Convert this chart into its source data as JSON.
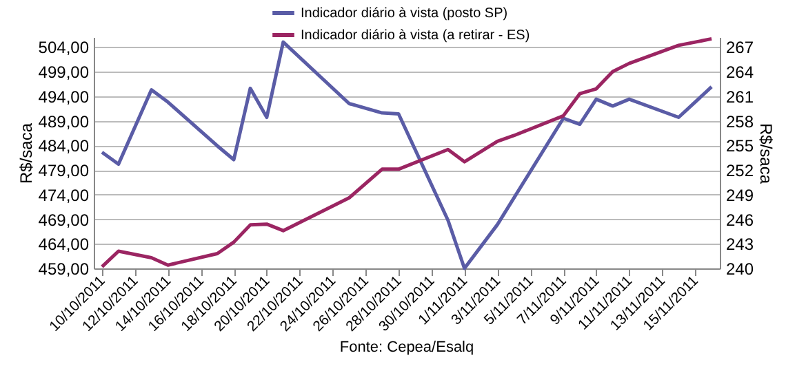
{
  "chart_data": {
    "type": "line",
    "ylabel": "R$/saca",
    "y2label": "R$/saca",
    "annotations": [
      "Fonte: Cepea/Esalq"
    ],
    "series": [
      {
        "name": "Indicador diário à vista (posto SP)",
        "color": "#5a5ca6",
        "x": [
          "2011-10-10",
          "2011-10-11",
          "2011-10-13",
          "2011-10-14",
          "2011-10-17",
          "2011-10-18",
          "2011-10-19",
          "2011-10-20",
          "2011-10-21",
          "2011-10-25",
          "2011-10-27",
          "2011-10-28",
          "2011-10-31",
          "2011-11-01",
          "2011-11-03",
          "2011-11-07",
          "2011-11-08",
          "2011-11-09",
          "2011-11-10",
          "2011-11-11",
          "2011-11-14",
          "2011-11-16"
        ],
        "values": [
          482.6,
          480.2,
          495.3,
          492.8,
          483.9,
          481.1,
          495.6,
          489.7,
          505.0,
          492.5,
          490.6,
          490.4,
          468.8,
          459.0,
          467.9,
          489.5,
          488.3,
          493.4,
          492.0,
          493.4,
          489.7,
          495.9
        ]
      },
      {
        "name": "Indicador diário à vista (a retirar - ES)",
        "color": "#9b2562",
        "axis": "y2",
        "x": [
          "2011-10-10",
          "2011-10-11",
          "2011-10-13",
          "2011-10-14",
          "2011-10-17",
          "2011-10-18",
          "2011-10-19",
          "2011-10-20",
          "2011-10-21",
          "2011-10-25",
          "2011-10-27",
          "2011-10-28",
          "2011-10-31",
          "2011-11-01",
          "2011-11-03",
          "2011-11-04",
          "2011-11-07",
          "2011-11-08",
          "2011-11-09",
          "2011-11-10",
          "2011-11-11",
          "2011-11-14",
          "2011-11-16"
        ],
        "values": [
          240.2,
          242.1,
          241.3,
          240.4,
          241.8,
          243.2,
          245.3,
          245.4,
          244.6,
          248.6,
          252.1,
          252.1,
          254.5,
          253.0,
          255.5,
          256.2,
          258.6,
          261.3,
          261.9,
          264.0,
          265.0,
          267.2,
          268.0
        ]
      }
    ],
    "xlim": [
      "2011-10-09T12:00",
      "2011-11-16T12:00"
    ],
    "xticks": [
      {
        "value": "2011-10-10",
        "label": "10/10/2011"
      },
      {
        "value": "2011-10-12",
        "label": "12/10/2011"
      },
      {
        "value": "2011-10-14",
        "label": "14/10/2011"
      },
      {
        "value": "2011-10-16",
        "label": "16/10/2011"
      },
      {
        "value": "2011-10-18",
        "label": "18/10/2011"
      },
      {
        "value": "2011-10-20",
        "label": "20/10/2011"
      },
      {
        "value": "2011-10-22",
        "label": "22/10/2011"
      },
      {
        "value": "2011-10-24",
        "label": "24/10/2011"
      },
      {
        "value": "2011-10-26",
        "label": "26/10/2011"
      },
      {
        "value": "2011-10-28",
        "label": "28/10/2011"
      },
      {
        "value": "2011-10-30",
        "label": "30/10/2011"
      },
      {
        "value": "2011-11-01",
        "label": "1/11/2011"
      },
      {
        "value": "2011-11-03",
        "label": "3/11/2011"
      },
      {
        "value": "2011-11-05",
        "label": "5/11/2011"
      },
      {
        "value": "2011-11-07",
        "label": "7/11/2011"
      },
      {
        "value": "2011-11-09",
        "label": "9/11/2011"
      },
      {
        "value": "2011-11-11",
        "label": "11/11/2011"
      },
      {
        "value": "2011-11-13",
        "label": "13/11/2011"
      },
      {
        "value": "2011-11-15",
        "label": "15/11/2011"
      }
    ],
    "ylim": [
      459,
      506
    ],
    "yticks": [
      {
        "value": 459,
        "label": "459,00"
      },
      {
        "value": 464,
        "label": "464,00"
      },
      {
        "value": 469,
        "label": "469,00"
      },
      {
        "value": 474,
        "label": "474,00"
      },
      {
        "value": 479,
        "label": "479,00"
      },
      {
        "value": 484,
        "label": "484,00"
      },
      {
        "value": 489,
        "label": "489,00"
      },
      {
        "value": 494,
        "label": "494,00"
      },
      {
        "value": 499,
        "label": "499,00"
      },
      {
        "value": 504,
        "label": "504,00"
      }
    ],
    "y2lim": [
      240,
      268.2
    ],
    "y2ticks": [
      240,
      243,
      246,
      249,
      252,
      255,
      258,
      261,
      264,
      267
    ],
    "grid": "y",
    "legend": "top",
    "line_style": "solid"
  }
}
